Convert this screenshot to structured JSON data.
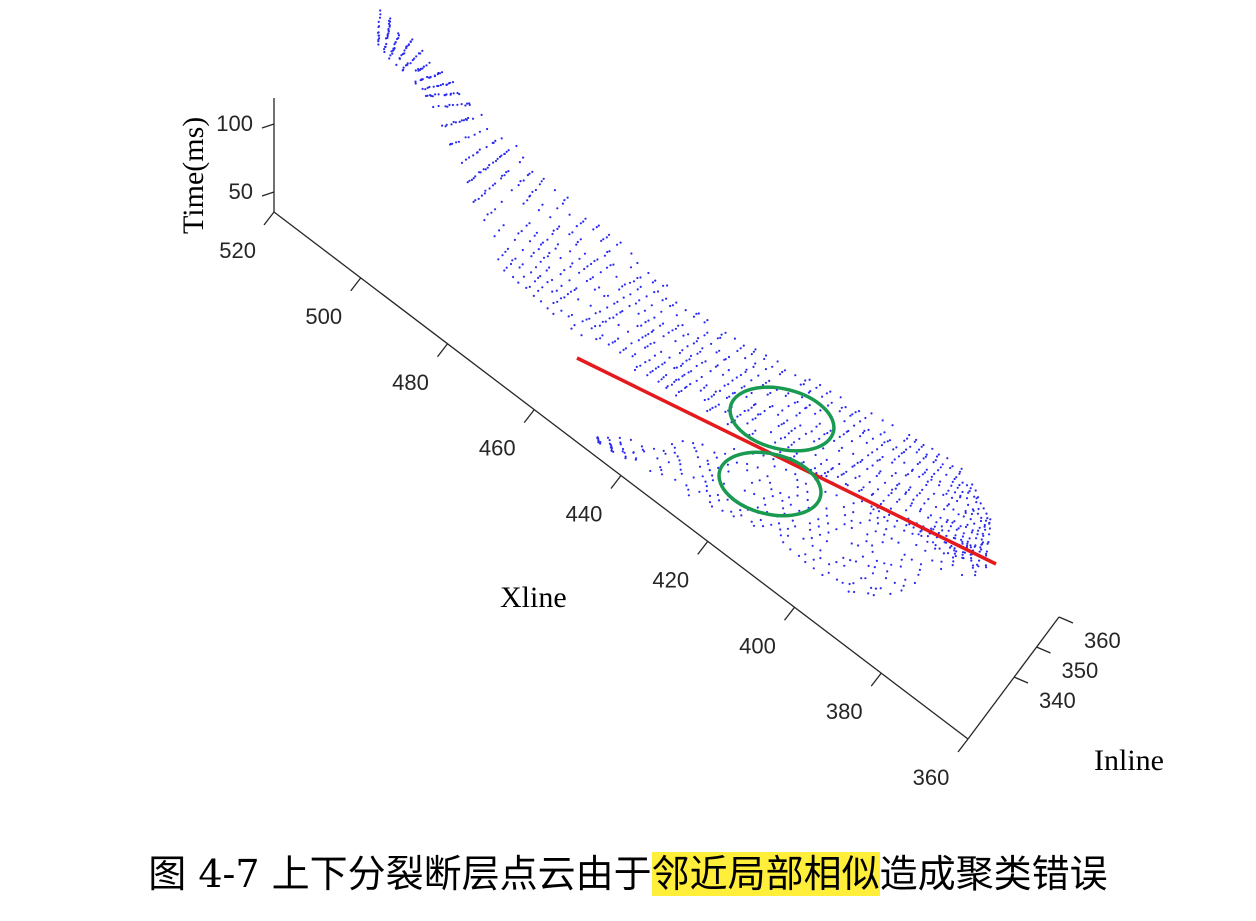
{
  "chart_data": {
    "type": "scatter",
    "projection": "3d",
    "x_axis": {
      "label": "Xline",
      "ticks": [
        "520",
        "500",
        "480",
        "460",
        "440",
        "420",
        "400",
        "380",
        "360"
      ]
    },
    "y_axis": {
      "label": "Inline",
      "ticks": [
        "340",
        "350",
        "360"
      ]
    },
    "z_axis": {
      "label": "Time(ms)",
      "ticks": [
        "50",
        "100"
      ]
    },
    "point_color": "#2a2af0",
    "line_color": "#e41a1c",
    "ellipse_color": "#1a9a50",
    "clusters": [
      {
        "description": "upper fault surface",
        "xline_range": [
          360,
          520
        ]
      },
      {
        "description": "lower fault surface",
        "xline_range": [
          360,
          440
        ]
      }
    ],
    "annotations": {
      "dividing_line": "red straight line separating upper and lower fault point clouds",
      "ellipses": 2
    }
  },
  "caption": {
    "prefix": "图 4-7  上下分裂断层点云由于",
    "highlight": "邻近局部相似",
    "suffix": "造成聚类错误",
    "highlight_color": "#ffef3a"
  }
}
